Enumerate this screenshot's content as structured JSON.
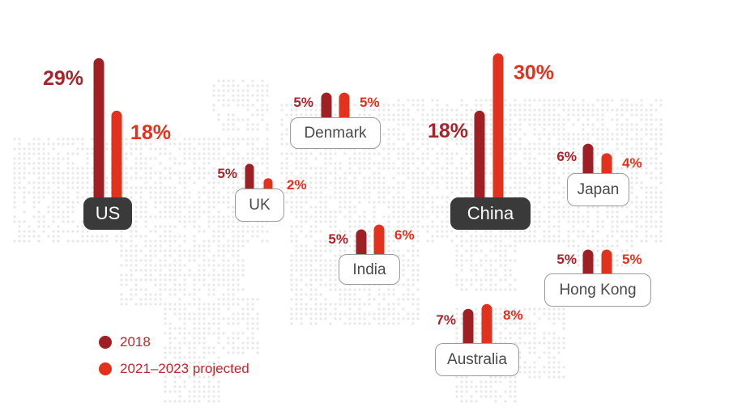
{
  "chart_data": {
    "type": "bar",
    "title": "",
    "categories": [
      "US",
      "UK",
      "Denmark",
      "India",
      "China",
      "Japan",
      "Hong Kong",
      "Australia"
    ],
    "series": [
      {
        "name": "2018",
        "color": "#9e1f24",
        "values": [
          29,
          5,
          5,
          5,
          18,
          6,
          5,
          7
        ],
        "labels": [
          "29%",
          "5%",
          "5%",
          "5%",
          "18%",
          "6%",
          "5%",
          "7%"
        ]
      },
      {
        "name": "2021–2023 projected",
        "color": "#e2321d",
        "values": [
          18,
          2,
          5,
          6,
          30,
          4,
          5,
          8
        ],
        "labels": [
          "18%",
          "2%",
          "5%",
          "6%",
          "30%",
          "4%",
          "5%",
          "8%"
        ]
      }
    ],
    "highlighted": [
      "US",
      "China"
    ],
    "legend_position": "bottom-left"
  },
  "legend": {
    "items": [
      {
        "label": "2018",
        "color": "#9e1f24"
      },
      {
        "label": "2021–2023 projected",
        "color": "#e2321d"
      }
    ]
  },
  "colors": {
    "label_2018": "#a8242a",
    "label_projected": "#e2321d",
    "map_dots": "#e8e8e8"
  }
}
